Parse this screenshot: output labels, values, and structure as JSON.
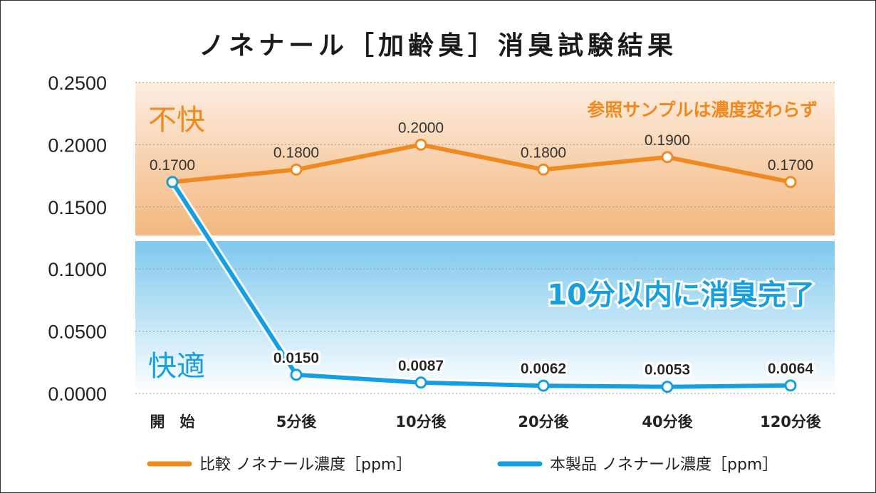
{
  "chart_data": {
    "type": "line",
    "title": "ノネナール［加齢臭］消臭試験結果",
    "categories": [
      "開　始",
      "5分後",
      "10分後",
      "20分後",
      "40分後",
      "120分後"
    ],
    "ylim": [
      0,
      0.25
    ],
    "yticks": [
      "0.2500",
      "0.2000",
      "0.1500",
      "0.1000",
      "0.0500",
      "0.0000"
    ],
    "series": [
      {
        "name": "比較 ノネナール濃度［ppm］",
        "color": "#ee8a1f",
        "values": [
          0.17,
          0.18,
          0.2,
          0.18,
          0.19,
          0.17
        ],
        "labels": [
          "0.1700",
          "0.1800",
          "0.2000",
          "0.1800",
          "0.1900",
          "0.1700"
        ]
      },
      {
        "name": "本製品 ノネナール濃度［ppm］",
        "color": "#159fe0",
        "values": [
          0.17,
          0.015,
          0.0087,
          0.0062,
          0.0053,
          0.0064
        ],
        "labels": [
          "",
          "0.0150",
          "0.0087",
          "0.0062",
          "0.0053",
          "0.0064"
        ]
      }
    ],
    "zones": {
      "unpleasant": "不快",
      "comfortable": "快適"
    },
    "annotations": {
      "reference_note": "参照サンプルは濃度変わらず",
      "product_note": "10分以内に消臭完了"
    },
    "legend": [
      {
        "label": "比較 ノネナール濃度［ppm］",
        "color": "#ee8a1f"
      },
      {
        "label": "本製品 ノネナール濃度［ppm］",
        "color": "#159fe0"
      }
    ],
    "grid": true,
    "legend_position": "bottom"
  }
}
